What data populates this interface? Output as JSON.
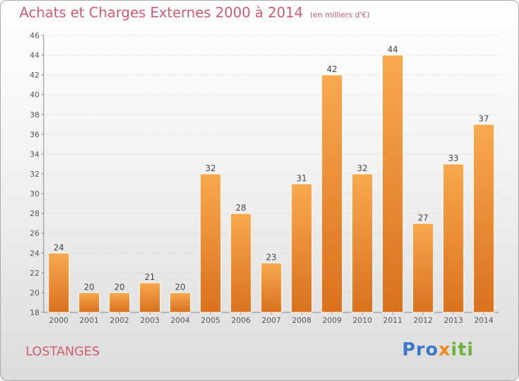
{
  "title": "Achats et Charges Externes 2000 à 2014",
  "subtitle": "(en milliers d'€)",
  "place": "LOSTANGES",
  "logo": {
    "part1": "Pro",
    "part2": "x",
    "part3": "iti"
  },
  "colors": {
    "bar_light": "#f8a94e",
    "bar_dark": "#d9711d",
    "title": "#d45a70"
  },
  "chart_data": {
    "type": "bar",
    "categories": [
      "2000",
      "2001",
      "2002",
      "2003",
      "2004",
      "2005",
      "2006",
      "2007",
      "2008",
      "2009",
      "2010",
      "2011",
      "2012",
      "2013",
      "2014"
    ],
    "values": [
      24,
      20,
      20,
      21,
      20,
      32,
      28,
      23,
      31,
      42,
      32,
      44,
      27,
      33,
      37
    ],
    "ylim": [
      18,
      46
    ],
    "yticks": [
      18,
      20,
      22,
      24,
      26,
      28,
      30,
      32,
      34,
      36,
      38,
      40,
      42,
      44,
      46
    ],
    "grid": true,
    "xlabel": "",
    "ylabel": ""
  }
}
